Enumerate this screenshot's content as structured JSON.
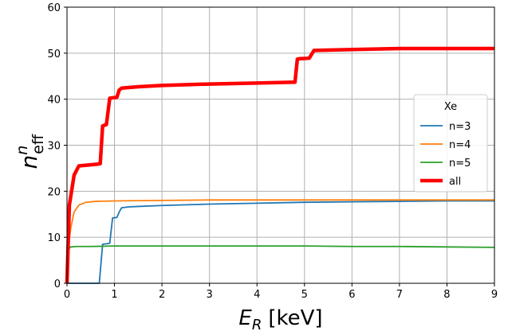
{
  "chart_data": {
    "type": "line",
    "xlabel": {
      "main": "E",
      "sub": "R",
      "unit": "[keV]"
    },
    "ylabel": {
      "main": "n",
      "sup": "n",
      "sub": "eff"
    },
    "xlim": [
      0,
      9
    ],
    "ylim": [
      0,
      60
    ],
    "xticks": [
      0,
      1,
      2,
      3,
      4,
      5,
      6,
      7,
      8,
      9
    ],
    "yticks": [
      0,
      10,
      20,
      30,
      40,
      50,
      60
    ],
    "grid": true,
    "legend": {
      "title": "Xe",
      "placement": "center-right"
    },
    "series": [
      {
        "name": "n=3",
        "color": "#1f77b4",
        "width": 1.8,
        "x": [
          0,
          0.68,
          0.75,
          0.76,
          0.85,
          0.9,
          0.96,
          1.05,
          1.1,
          1.15,
          1.3,
          1.5,
          2,
          3,
          4,
          5,
          6,
          7,
          8,
          9
        ],
        "y": [
          0,
          0,
          8.5,
          8.5,
          8.6,
          8.7,
          14.2,
          14.3,
          15.5,
          16.4,
          16.6,
          16.7,
          16.9,
          17.2,
          17.4,
          17.6,
          17.7,
          17.8,
          17.9,
          17.9
        ]
      },
      {
        "name": "n=4",
        "color": "#ff7f0e",
        "width": 1.8,
        "x": [
          0,
          0.03,
          0.08,
          0.15,
          0.25,
          0.4,
          0.6,
          1,
          2,
          3,
          4,
          5,
          6,
          7,
          8,
          9
        ],
        "y": [
          0,
          8,
          12,
          15.5,
          17,
          17.6,
          17.8,
          17.9,
          18,
          18.1,
          18.1,
          18.1,
          18.1,
          18.1,
          18.1,
          18.1
        ]
      },
      {
        "name": "n=5",
        "color": "#2ca02c",
        "width": 1.8,
        "x": [
          0,
          0.03,
          0.08,
          0.2,
          0.5,
          1,
          2,
          3,
          4,
          5,
          6,
          7,
          8,
          9
        ],
        "y": [
          0,
          7.5,
          7.9,
          8,
          8,
          8.1,
          8.1,
          8.1,
          8.1,
          8.1,
          8,
          8,
          7.9,
          7.8
        ]
      },
      {
        "name": "all",
        "color": "#ff0000",
        "width": 4.5,
        "x": [
          0,
          0.05,
          0.15,
          0.25,
          0.65,
          0.7,
          0.75,
          0.83,
          0.9,
          0.95,
          1.05,
          1.1,
          1.15,
          1.5,
          2,
          3,
          4,
          4.8,
          4.85,
          4.9,
          5.1,
          5.2,
          6,
          7,
          8,
          9
        ],
        "y": [
          0,
          17,
          23.5,
          25.5,
          25.9,
          26,
          34.2,
          34.5,
          40.2,
          40.3,
          40.4,
          42,
          42.4,
          42.7,
          43,
          43.3,
          43.5,
          43.7,
          48.7,
          48.8,
          48.9,
          50.6,
          50.8,
          51,
          51,
          51
        ]
      }
    ]
  }
}
